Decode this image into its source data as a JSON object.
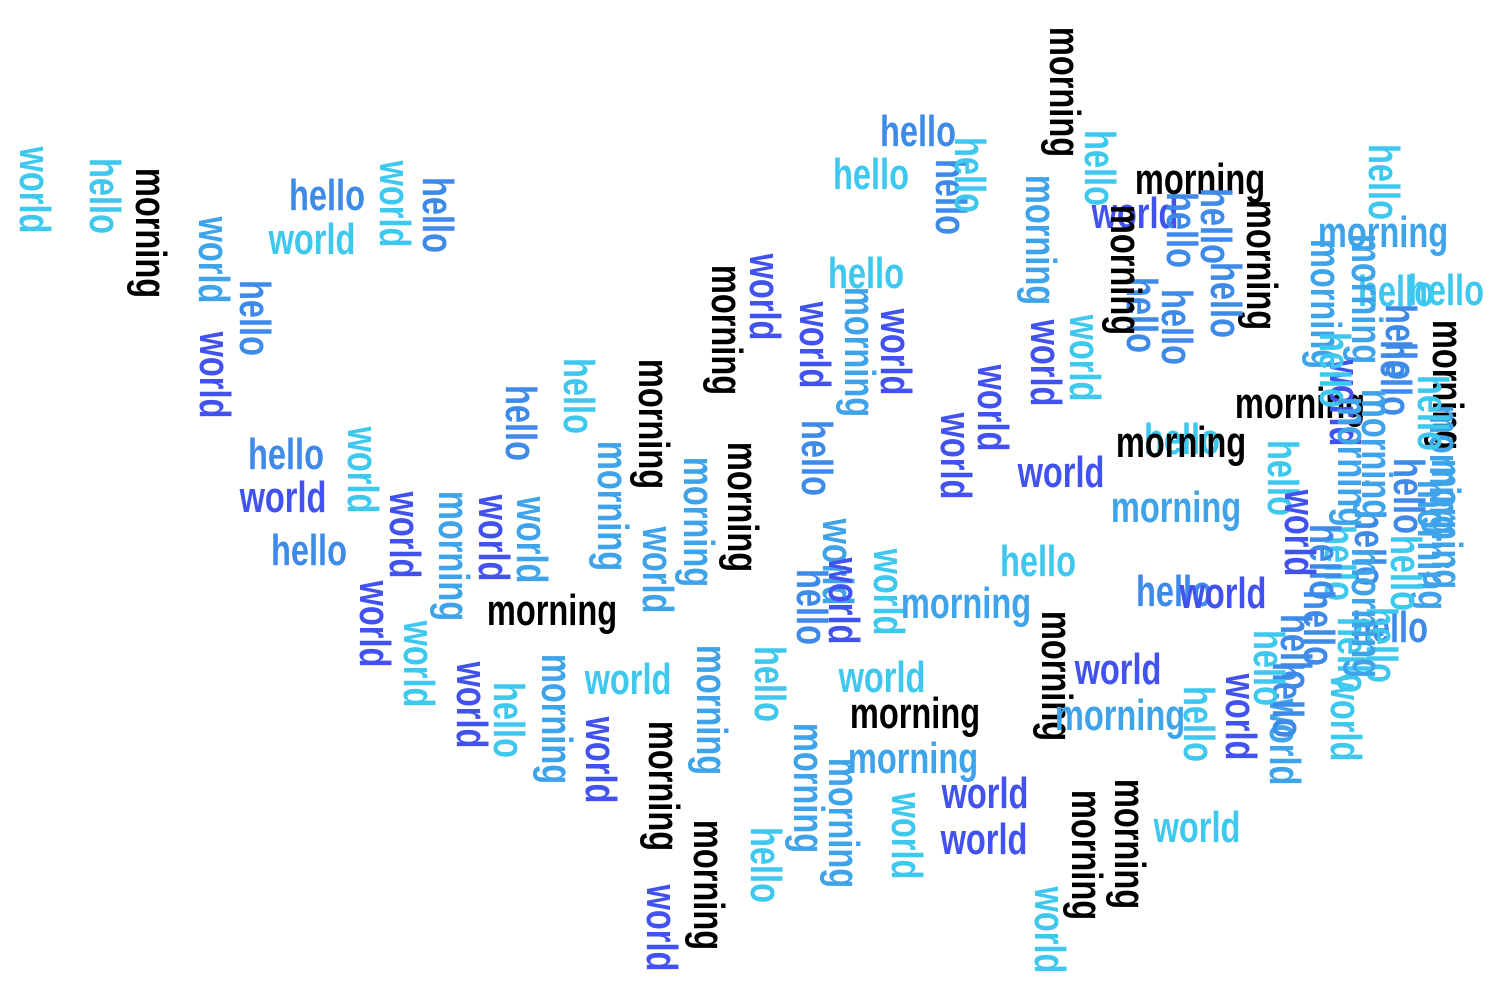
{
  "colors": {
    "black": "#000000",
    "cyan": "#3ec8ee",
    "sky": "#3fa3ea",
    "azure": "#3d8ae8",
    "indigo": "#4152ee"
  },
  "words": [
    {
      "text": "world",
      "color": "cyan"
    },
    {
      "text": "hello",
      "color": "cyan"
    },
    {
      "text": "morning",
      "color": "black"
    },
    {
      "text": "hello",
      "color": "azure"
    },
    {
      "text": "world",
      "color": "cyan"
    },
    {
      "text": "world",
      "color": "cyan"
    },
    {
      "text": "hello",
      "color": "azure"
    },
    {
      "text": "world",
      "color": "sky"
    },
    {
      "text": "world",
      "color": "indigo"
    },
    {
      "text": "hello",
      "color": "azure"
    },
    {
      "text": "hello",
      "color": "azure"
    },
    {
      "text": "world",
      "color": "indigo"
    },
    {
      "text": "hello",
      "color": "azure"
    },
    {
      "text": "world",
      "color": "cyan"
    },
    {
      "text": "world",
      "color": "indigo"
    },
    {
      "text": "world",
      "color": "indigo"
    },
    {
      "text": "world",
      "color": "cyan"
    },
    {
      "text": "world",
      "color": "indigo"
    },
    {
      "text": "hello",
      "color": "cyan"
    },
    {
      "text": "morning",
      "color": "sky"
    },
    {
      "text": "world",
      "color": "indigo"
    },
    {
      "text": "hello",
      "color": "azure"
    },
    {
      "text": "world",
      "color": "sky"
    },
    {
      "text": "hello",
      "color": "cyan"
    },
    {
      "text": "morning",
      "color": "sky"
    },
    {
      "text": "morning",
      "color": "black"
    },
    {
      "text": "morning",
      "color": "sky"
    },
    {
      "text": "world",
      "color": "indigo"
    },
    {
      "text": "morning",
      "color": "black"
    },
    {
      "text": "world",
      "color": "sky"
    },
    {
      "text": "morning",
      "color": "sky"
    },
    {
      "text": "world",
      "color": "cyan"
    },
    {
      "text": "morning",
      "color": "black"
    },
    {
      "text": "morning",
      "color": "black"
    },
    {
      "text": "world",
      "color": "indigo"
    },
    {
      "text": "morning",
      "color": "sky"
    },
    {
      "text": "morning",
      "color": "black"
    },
    {
      "text": "morning",
      "color": "black"
    },
    {
      "text": "world",
      "color": "indigo"
    },
    {
      "text": "hello",
      "color": "cyan"
    },
    {
      "text": "hello",
      "color": "cyan"
    },
    {
      "text": "morning",
      "color": "sky"
    },
    {
      "text": "world",
      "color": "indigo"
    },
    {
      "text": "world",
      "color": "indigo"
    },
    {
      "text": "hello",
      "color": "azure"
    },
    {
      "text": "morning",
      "color": "sky"
    },
    {
      "text": "morning",
      "color": "sky"
    },
    {
      "text": "world",
      "color": "sky"
    },
    {
      "text": "hello",
      "color": "azure"
    },
    {
      "text": "world",
      "color": "indigo"
    },
    {
      "text": "hello",
      "color": "cyan"
    },
    {
      "text": "hello",
      "color": "azure"
    },
    {
      "text": "hello",
      "color": "cyan"
    },
    {
      "text": "hello",
      "color": "azure"
    },
    {
      "text": "morning",
      "color": "black"
    },
    {
      "text": "morning",
      "color": "black"
    },
    {
      "text": "morning",
      "color": "black"
    },
    {
      "text": "world",
      "color": "cyan"
    },
    {
      "text": "world",
      "color": "cyan"
    },
    {
      "text": "morning",
      "color": "sky"
    },
    {
      "text": "hello",
      "color": "cyan"
    },
    {
      "text": "morning",
      "color": "sky"
    },
    {
      "text": "world",
      "color": "cyan"
    },
    {
      "text": "world",
      "color": "indigo"
    },
    {
      "text": "world",
      "color": "indigo"
    },
    {
      "text": "morning",
      "color": "black"
    },
    {
      "text": "world",
      "color": "cyan"
    },
    {
      "text": "morning",
      "color": "black"
    },
    {
      "text": "world",
      "color": "cyan"
    },
    {
      "text": "hello",
      "color": "cyan"
    },
    {
      "text": "world",
      "color": "indigo"
    },
    {
      "text": "world",
      "color": "indigo"
    },
    {
      "text": "morning",
      "color": "sky"
    },
    {
      "text": "world",
      "color": "indigo"
    },
    {
      "text": "world",
      "color": "indigo"
    },
    {
      "text": "world",
      "color": "indigo"
    },
    {
      "text": "world",
      "color": "cyan"
    },
    {
      "text": "hello",
      "color": "azure"
    },
    {
      "text": "morning",
      "color": "black"
    },
    {
      "text": "morning",
      "color": "black"
    },
    {
      "text": "hello",
      "color": "azure"
    },
    {
      "text": "hello",
      "color": "cyan"
    },
    {
      "text": "hello",
      "color": "cyan"
    },
    {
      "text": "hello",
      "color": "azure"
    },
    {
      "text": "hello",
      "color": "azure"
    },
    {
      "text": "hello",
      "color": "azure"
    },
    {
      "text": "world",
      "color": "cyan"
    },
    {
      "text": "morning",
      "color": "sky"
    },
    {
      "text": "hello",
      "color": "cyan"
    },
    {
      "text": "hello",
      "color": "cyan"
    },
    {
      "text": "morning",
      "color": "black"
    },
    {
      "text": "morning",
      "color": "sky"
    },
    {
      "text": "morning",
      "color": "sky"
    },
    {
      "text": "morning",
      "color": "sky"
    },
    {
      "text": "world",
      "color": "indigo"
    },
    {
      "text": "morning",
      "color": "black"
    },
    {
      "text": "world",
      "color": "sky"
    },
    {
      "text": "hello",
      "color": "azure"
    },
    {
      "text": "world",
      "color": "indigo"
    },
    {
      "text": "morning",
      "color": "black"
    },
    {
      "text": "morning",
      "color": "sky"
    },
    {
      "text": "hello",
      "color": "cyan"
    },
    {
      "text": "world",
      "color": "indigo"
    },
    {
      "text": "hello",
      "color": "azure"
    },
    {
      "text": "morning",
      "color": "sky"
    },
    {
      "text": "hello",
      "color": "cyan"
    },
    {
      "text": "hello",
      "color": "azure"
    },
    {
      "text": "hello",
      "color": "cyan"
    },
    {
      "text": "morning",
      "color": "sky"
    },
    {
      "text": "hello",
      "color": "cyan"
    },
    {
      "text": "morning",
      "color": "black"
    },
    {
      "text": "hello",
      "color": "azure"
    },
    {
      "text": "hello",
      "color": "azure"
    },
    {
      "text": "morning",
      "color": "sky"
    },
    {
      "text": "hello",
      "color": "cyan"
    },
    {
      "text": "hello",
      "color": "cyan"
    },
    {
      "text": "morning",
      "color": "sky"
    },
    {
      "text": "hello",
      "color": "cyan"
    },
    {
      "text": "world",
      "color": "indigo"
    },
    {
      "text": "hello",
      "color": "azure"
    },
    {
      "text": "hello",
      "color": "cyan"
    },
    {
      "text": "hello",
      "color": "azure"
    },
    {
      "text": "hello",
      "color": "cyan"
    },
    {
      "text": "hello",
      "color": "azure"
    },
    {
      "text": "morning",
      "color": "sky"
    },
    {
      "text": "hello",
      "color": "azure"
    },
    {
      "text": "hello",
      "color": "cyan"
    },
    {
      "text": "morning",
      "color": "sky"
    },
    {
      "text": "hello",
      "color": "azure"
    },
    {
      "text": "world",
      "color": "indigo"
    }
  ]
}
